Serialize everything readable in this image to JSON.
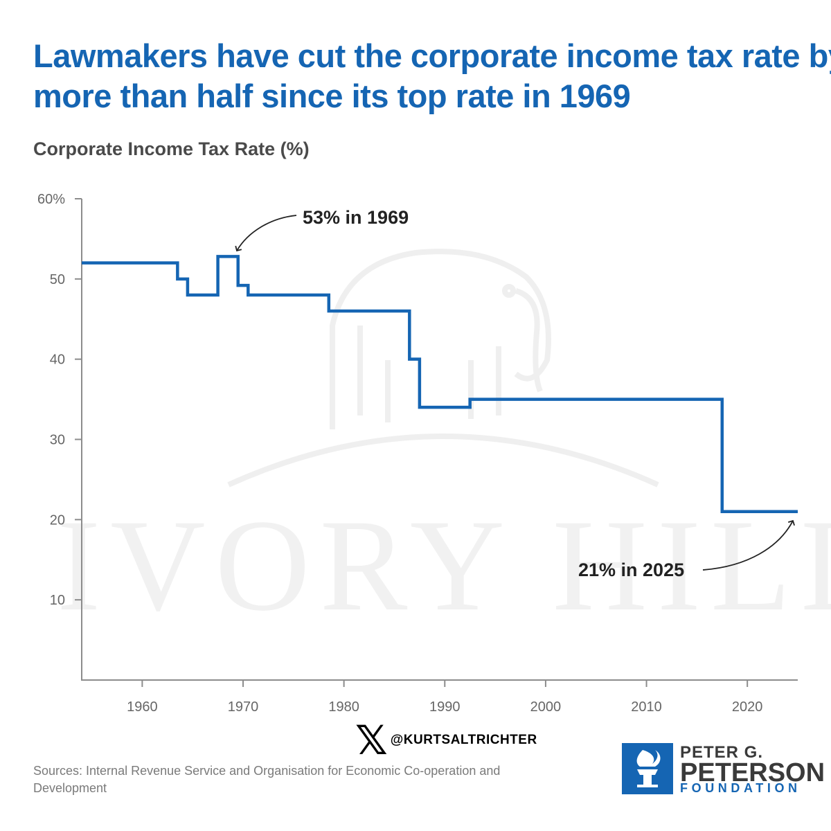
{
  "title": {
    "line1": "Lawmakers have cut the corporate income tax rate by",
    "line2": "more than half since its top rate in 1969"
  },
  "subtitle": "Corporate Income Tax Rate (%)",
  "watermark": "IVORY HILL",
  "chart_data": {
    "type": "line",
    "step": true,
    "title": "Lawmakers have cut the corporate income tax rate by more than half since its top rate in 1969",
    "ylabel": "Corporate Income Tax Rate (%)",
    "xlabel": "",
    "xlim": [
      1954,
      2025
    ],
    "ylim": [
      0,
      60
    ],
    "x_ticks": [
      1960,
      1970,
      1980,
      1990,
      2000,
      2010,
      2020
    ],
    "x_tick_labels": [
      "1960",
      "1970",
      "1980",
      "1990",
      "2000",
      "2010",
      "2020"
    ],
    "y_ticks": [
      10,
      20,
      30,
      40,
      50,
      60
    ],
    "y_tick_labels": [
      "10",
      "20",
      "30",
      "40",
      "50",
      "60%"
    ],
    "grid": false,
    "color": "#1565b3",
    "series": [
      {
        "name": "Corporate Income Tax Rate",
        "x": [
          1954,
          1963.5,
          1964.5,
          1967.5,
          1969.5,
          1970.5,
          1978.5,
          1986.5,
          1987.5,
          1992.5,
          2017.5,
          2025
        ],
        "values": [
          52,
          50,
          48,
          52.8,
          49.2,
          48,
          46,
          40,
          34,
          35,
          21,
          21
        ]
      }
    ],
    "annotations": [
      {
        "text": "53% in 1969",
        "x": 1969,
        "y": 52.8
      },
      {
        "text": "21% in 2025",
        "x": 2025,
        "y": 21
      }
    ]
  },
  "social": {
    "logo": "𝕏",
    "handle": "@KURTSALTRICHTER"
  },
  "sources": "Sources: Internal Revenue Service and Organisation for Economic Co-operation and Development",
  "brand": {
    "line1": "PETER G.",
    "line2": "PETERSON",
    "line3": "FOUNDATION",
    "icon": "torch-icon",
    "color": "#1565b3"
  }
}
